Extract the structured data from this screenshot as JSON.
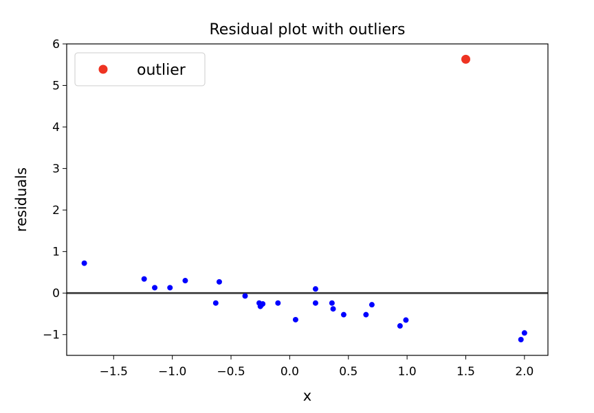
{
  "chart_data": {
    "type": "scatter",
    "title": "Residual plot with outliers",
    "xlabel": "x",
    "ylabel": "residuals",
    "xlim": [
      -1.9,
      2.2
    ],
    "ylim": [
      -1.5,
      6.0
    ],
    "xticks": [
      -1.5,
      -1.0,
      -0.5,
      0.0,
      0.5,
      1.0,
      1.5,
      2.0
    ],
    "yticks": [
      -1,
      0,
      1,
      2,
      3,
      4,
      5,
      6
    ],
    "xtick_labels": [
      "−1.5",
      "−1.0",
      "−0.5",
      "0.0",
      "0.5",
      "1.0",
      "1.5",
      "2.0"
    ],
    "ytick_labels": [
      "−1",
      "0",
      "1",
      "2",
      "3",
      "4",
      "5",
      "6"
    ],
    "reference_line": {
      "y": 0,
      "color": "#333333"
    },
    "grid": false,
    "legend_position": "upper-left",
    "series": [
      {
        "color": "#0000ff",
        "marker": "small-dot",
        "points": [
          {
            "x": -1.75,
            "y": 0.72
          },
          {
            "x": -1.24,
            "y": 0.34
          },
          {
            "x": -1.15,
            "y": 0.13
          },
          {
            "x": -1.02,
            "y": 0.13
          },
          {
            "x": -0.89,
            "y": 0.3
          },
          {
            "x": -0.63,
            "y": -0.24
          },
          {
            "x": -0.6,
            "y": 0.27
          },
          {
            "x": -0.38,
            "y": -0.07
          },
          {
            "x": -0.26,
            "y": -0.24
          },
          {
            "x": -0.25,
            "y": -0.32
          },
          {
            "x": -0.24,
            "y": -0.28
          },
          {
            "x": -0.23,
            "y": -0.26
          },
          {
            "x": -0.1,
            "y": -0.24
          },
          {
            "x": 0.05,
            "y": -0.64
          },
          {
            "x": 0.22,
            "y": 0.1
          },
          {
            "x": 0.22,
            "y": -0.24
          },
          {
            "x": 0.36,
            "y": -0.24
          },
          {
            "x": 0.37,
            "y": -0.38
          },
          {
            "x": 0.46,
            "y": -0.52
          },
          {
            "x": 0.65,
            "y": -0.52
          },
          {
            "x": 0.7,
            "y": -0.28
          },
          {
            "x": 0.94,
            "y": -0.79
          },
          {
            "x": 0.99,
            "y": -0.65
          },
          {
            "x": 1.97,
            "y": -1.12
          },
          {
            "x": 2.0,
            "y": -0.96
          }
        ]
      },
      {
        "name": "outlier",
        "color": "#ee3322",
        "marker": "large-dot",
        "points": [
          {
            "x": 1.5,
            "y": 5.63
          }
        ]
      }
    ]
  }
}
